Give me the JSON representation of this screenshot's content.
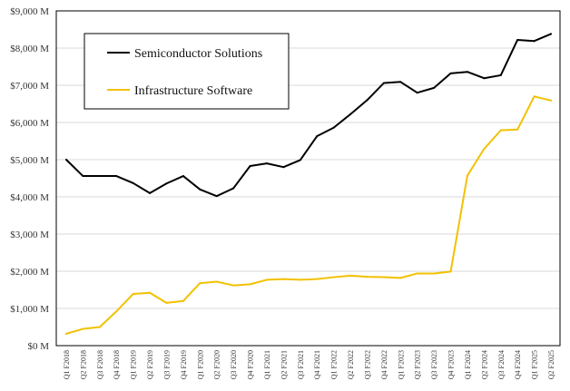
{
  "chart_data": {
    "type": "line",
    "title": "",
    "xlabel": "",
    "ylabel": "",
    "ylim": [
      0,
      9000
    ],
    "grid": true,
    "legend_position": "top-left, inside plot",
    "y_ticks": [
      {
        "value": 0,
        "label": "$0 M"
      },
      {
        "value": 1000,
        "label": "$1,000 M"
      },
      {
        "value": 2000,
        "label": "$2,000 M"
      },
      {
        "value": 3000,
        "label": "$3,000 M"
      },
      {
        "value": 4000,
        "label": "$4,000 M"
      },
      {
        "value": 5000,
        "label": "$5,000 M"
      },
      {
        "value": 6000,
        "label": "$6,000 M"
      },
      {
        "value": 7000,
        "label": "$7,000 M"
      },
      {
        "value": 8000,
        "label": "$8,000 M"
      },
      {
        "value": 9000,
        "label": "$9,000 M"
      }
    ],
    "categories": [
      "Q1 F2018",
      "Q2 F2018",
      "Q3 F2018",
      "Q4 F2018",
      "Q1 F2019",
      "Q2 F2019",
      "Q3 F2019",
      "Q4 F2019",
      "Q1 F2020",
      "Q2 F2020",
      "Q3 F2020",
      "Q4 F2020",
      "Q1 F2021",
      "Q2 F2021",
      "Q3 F2021",
      "Q4 F2021",
      "Q1 F2022",
      "Q2 F2022",
      "Q3 F2022",
      "Q4 F2022",
      "Q1 F2023",
      "Q2 F2023",
      "Q3 F2023",
      "Q4 F2023",
      "Q1 F2024",
      "Q2 F2024",
      "Q3 F2024",
      "Q4 F2024",
      "Q1 F2025",
      "Q2 F2025"
    ],
    "series": [
      {
        "name": "Semiconductor Solutions",
        "color": "#000000",
        "values": [
          5000,
          4560,
          4560,
          4560,
          4370,
          4100,
          4360,
          4560,
          4200,
          4020,
          4230,
          4830,
          4900,
          4800,
          4990,
          5630,
          5860,
          6220,
          6600,
          7060,
          7090,
          6800,
          6930,
          7320,
          7360,
          7190,
          7270,
          8220,
          8190,
          8380
        ]
      },
      {
        "name": "Infrastructure Software",
        "color": "#f2c100",
        "values": [
          320,
          450,
          500,
          920,
          1390,
          1420,
          1150,
          1200,
          1680,
          1720,
          1620,
          1650,
          1770,
          1790,
          1770,
          1790,
          1840,
          1880,
          1850,
          1840,
          1820,
          1940,
          1940,
          1990,
          4570,
          5290,
          5790,
          5810,
          6700,
          6590
        ]
      }
    ]
  }
}
